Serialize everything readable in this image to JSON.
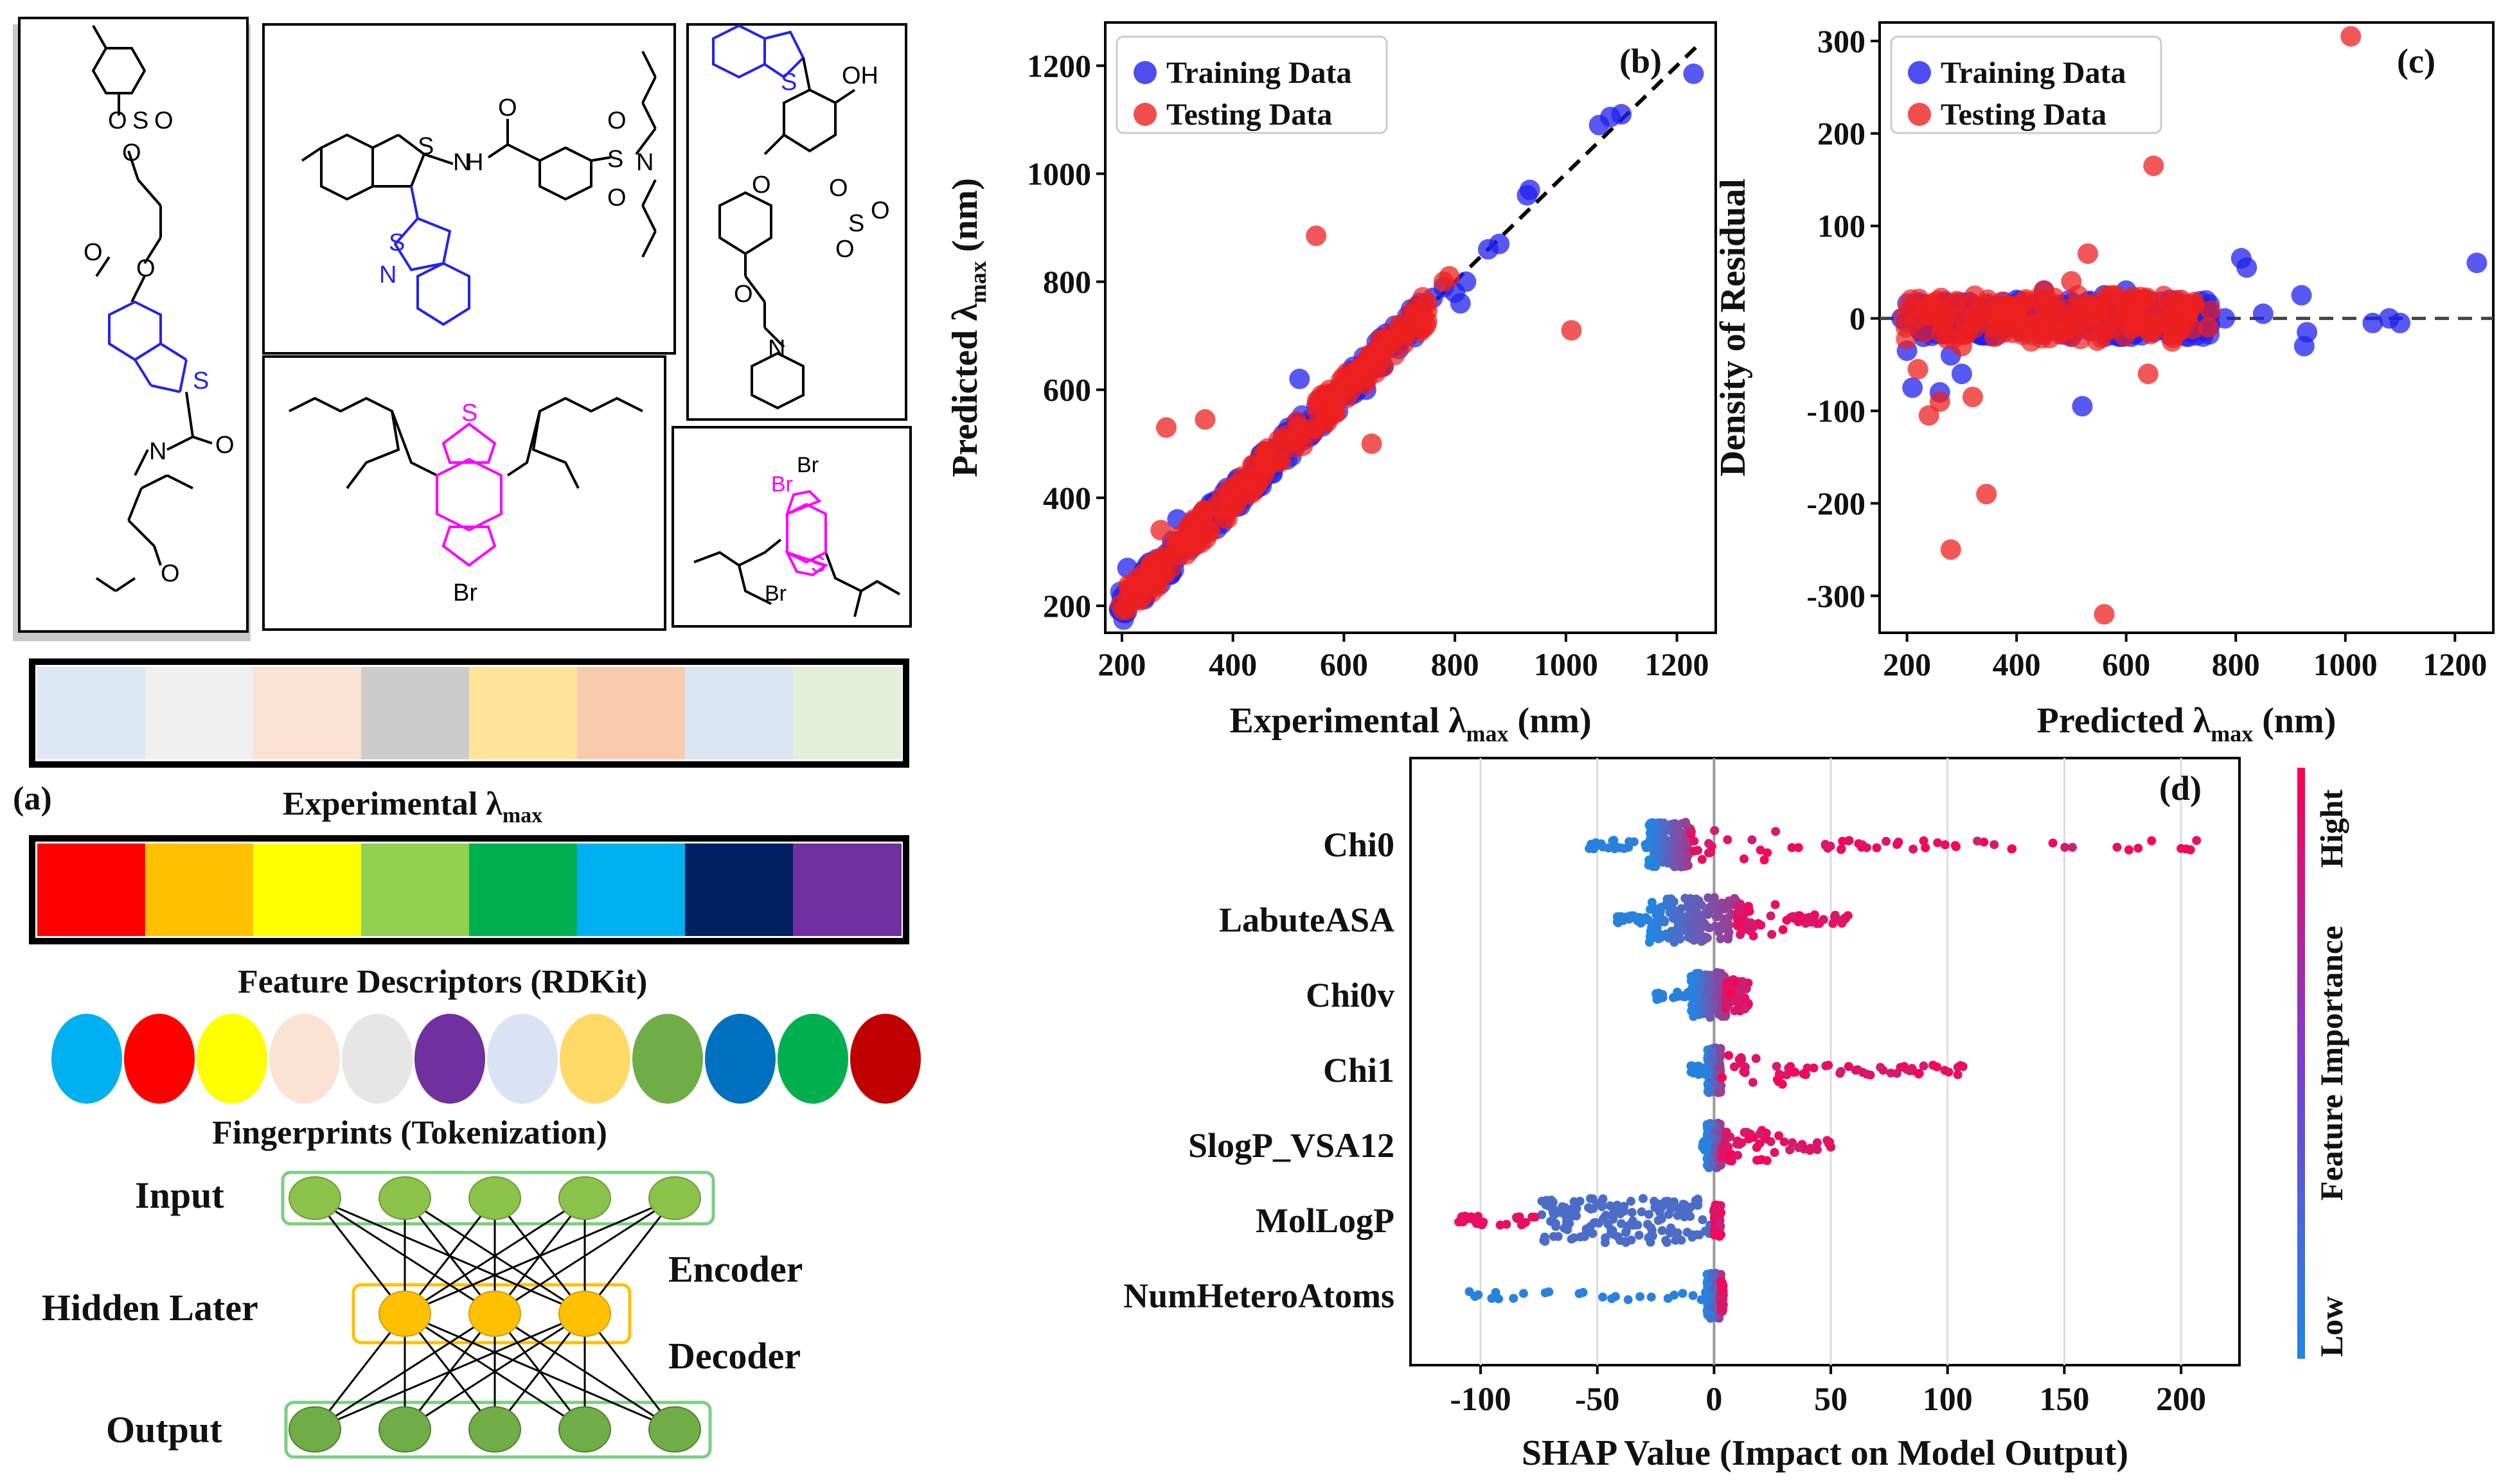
{
  "panel_a": {
    "label": "(a)",
    "experimental_label": "Experimental λ",
    "experimental_sub": "max",
    "experimental_colors": [
      "#dce9f5",
      "#f0f0f0",
      "#fbe3d3",
      "#cccccc",
      "#ffe59a",
      "#f8cbad",
      "#dae5f3",
      "#e2efd9"
    ],
    "spectrum_colors": [
      "#ff0000",
      "#ffc000",
      "#ffff00",
      "#92d050",
      "#00b050",
      "#00b0f0",
      "#002060",
      "#7030a0"
    ],
    "descriptor_label": "Feature Descriptors (RDKit)",
    "fingerprint_colors": [
      "#00b0f0",
      "#ff0000",
      "#ffff00",
      "#fbe3d3",
      "#e7e6e6",
      "#7030a0",
      "#dae3f3",
      "#ffd966",
      "#70ad47",
      "#0070c0",
      "#00b050",
      "#c00000"
    ],
    "fingerprint_label": "Fingerprints (Tokenization)",
    "network": {
      "input_label": "Input",
      "hidden_label": "Hidden Later",
      "output_label": "Output",
      "encoder_label": "Encoder",
      "decoder_label": "Decoder"
    },
    "molecules": {
      "atoms": [
        "O",
        "S",
        "O",
        "O",
        "O",
        "O",
        "S",
        "N",
        "O",
        "O",
        "S",
        "N",
        "H",
        "O",
        "S",
        "O",
        "O",
        "N",
        "S",
        "N",
        "S",
        "OH",
        "O",
        "O",
        "S",
        "O",
        "O",
        "O",
        "N",
        "S",
        "S",
        "Br",
        "Br",
        "S",
        "S",
        "Br"
      ]
    }
  },
  "chart_data": [
    {
      "panel": "(b)",
      "type": "scatter",
      "xlabel": "Experimental λ",
      "xlabel_sub": "max",
      "xlabel_unit": " (nm)",
      "ylabel": "Predicted λ",
      "ylabel_sub": "max",
      "ylabel_unit": " (nm)",
      "xlim": [
        170,
        1270
      ],
      "ylim": [
        150,
        1280
      ],
      "xticks": [
        200,
        400,
        600,
        800,
        1000,
        1200
      ],
      "yticks": [
        200,
        400,
        600,
        800,
        1000,
        1200
      ],
      "legend": [
        "Training Data",
        "Testing Data"
      ],
      "legend_position": "top-left",
      "series": [
        {
          "name": "Training Data",
          "color": "#2020ee",
          "points": [
            [
              200,
              195
            ],
            [
              210,
              205
            ],
            [
              225,
              220
            ],
            [
              240,
              235
            ],
            [
              260,
              262
            ],
            [
              280,
              290
            ],
            [
              300,
              300
            ],
            [
              320,
              330
            ],
            [
              340,
              335
            ],
            [
              360,
              365
            ],
            [
              380,
              380
            ],
            [
              400,
              405
            ],
            [
              420,
              415
            ],
            [
              440,
              445
            ],
            [
              460,
              470
            ],
            [
              480,
              485
            ],
            [
              500,
              495
            ],
            [
              520,
              530
            ],
            [
              540,
              545
            ],
            [
              560,
              555
            ],
            [
              580,
              590
            ],
            [
              600,
              600
            ],
            [
              620,
              615
            ],
            [
              640,
              650
            ],
            [
              660,
              665
            ],
            [
              680,
              690
            ],
            [
              700,
              705
            ],
            [
              720,
              730
            ],
            [
              740,
              745
            ],
            [
              760,
              770
            ],
            [
              780,
              790
            ],
            [
              800,
              780
            ],
            [
              810,
              760
            ],
            [
              820,
              800
            ],
            [
              860,
              860
            ],
            [
              880,
              870
            ],
            [
              930,
              960
            ],
            [
              935,
              970
            ],
            [
              1060,
              1090
            ],
            [
              1080,
              1105
            ],
            [
              1100,
              1110
            ],
            [
              1230,
              1185
            ],
            [
              210,
              270
            ],
            [
              250,
              280
            ],
            [
              300,
              360
            ],
            [
              450,
              480
            ],
            [
              500,
              510
            ],
            [
              520,
              620
            ],
            [
              560,
              540
            ],
            [
              640,
              600
            ]
          ]
        },
        {
          "name": "Testing Data",
          "color": "#ee2020",
          "points": [
            [
              215,
              230
            ],
            [
              230,
              240
            ],
            [
              270,
              340
            ],
            [
              280,
              530
            ],
            [
              300,
              310
            ],
            [
              330,
              360
            ],
            [
              350,
              545
            ],
            [
              370,
              385
            ],
            [
              400,
              420
            ],
            [
              430,
              440
            ],
            [
              460,
              460
            ],
            [
              490,
              510
            ],
            [
              520,
              520
            ],
            [
              550,
              885
            ],
            [
              560,
              590
            ],
            [
              590,
              585
            ],
            [
              610,
              620
            ],
            [
              630,
              640
            ],
            [
              650,
              500
            ],
            [
              660,
              670
            ],
            [
              680,
              690
            ],
            [
              700,
              720
            ],
            [
              720,
              740
            ],
            [
              750,
              760
            ],
            [
              780,
              800
            ],
            [
              790,
              810
            ],
            [
              1010,
              710
            ],
            [
              240,
              260
            ],
            [
              320,
              345
            ],
            [
              380,
              400
            ]
          ]
        }
      ],
      "reference_line": [
        [
          200,
          200
        ],
        [
          1240,
          1240
        ]
      ]
    },
    {
      "panel": "(c)",
      "type": "scatter",
      "xlabel": "Predicted λ",
      "xlabel_sub": "max",
      "xlabel_unit": " (nm)",
      "ylabel": "Density of Residual",
      "xlim": [
        150,
        1270
      ],
      "ylim": [
        -340,
        320
      ],
      "xticks": [
        200,
        400,
        600,
        800,
        1000,
        1200
      ],
      "yticks": [
        300,
        200,
        100,
        0,
        -100,
        -200,
        -300
      ],
      "legend": [
        "Training Data",
        "Testing Data"
      ],
      "legend_position": "top-left",
      "series": [
        {
          "name": "Training Data",
          "color": "#2020ee",
          "points": [
            [
              190,
              0
            ],
            [
              200,
              -35
            ],
            [
              210,
              -75
            ],
            [
              230,
              -20
            ],
            [
              250,
              -10
            ],
            [
              260,
              -80
            ],
            [
              280,
              -40
            ],
            [
              300,
              -60
            ],
            [
              320,
              10
            ],
            [
              350,
              5
            ],
            [
              380,
              -5
            ],
            [
              400,
              20
            ],
            [
              420,
              -10
            ],
            [
              450,
              30
            ],
            [
              480,
              15
            ],
            [
              500,
              -20
            ],
            [
              520,
              -95
            ],
            [
              540,
              10
            ],
            [
              560,
              25
            ],
            [
              580,
              -10
            ],
            [
              600,
              30
            ],
            [
              620,
              5
            ],
            [
              650,
              -15
            ],
            [
              680,
              20
            ],
            [
              700,
              10
            ],
            [
              740,
              -5
            ],
            [
              780,
              0
            ],
            [
              810,
              65
            ],
            [
              820,
              55
            ],
            [
              850,
              5
            ],
            [
              920,
              25
            ],
            [
              925,
              -30
            ],
            [
              930,
              -15
            ],
            [
              1050,
              -5
            ],
            [
              1080,
              0
            ],
            [
              1100,
              -5
            ],
            [
              1240,
              60
            ]
          ]
        },
        {
          "name": "Testing Data",
          "color": "#ee2020",
          "points": [
            [
              220,
              -55
            ],
            [
              240,
              -105
            ],
            [
              260,
              -90
            ],
            [
              280,
              -250
            ],
            [
              300,
              -30
            ],
            [
              320,
              -85
            ],
            [
              345,
              -190
            ],
            [
              360,
              -20
            ],
            [
              400,
              10
            ],
            [
              450,
              30
            ],
            [
              500,
              40
            ],
            [
              530,
              70
            ],
            [
              560,
              -320
            ],
            [
              580,
              25
            ],
            [
              600,
              10
            ],
            [
              640,
              -60
            ],
            [
              650,
              165
            ],
            [
              700,
              20
            ],
            [
              750,
              -10
            ],
            [
              1010,
              305
            ]
          ]
        }
      ],
      "reference_line_y": 0
    },
    {
      "panel": "(d)",
      "type": "scatter",
      "subtype": "shap-beeswarm",
      "xlabel": "SHAP Value (Impact on Model Output)",
      "xlim": [
        -130,
        225
      ],
      "xticks": [
        -100,
        -50,
        0,
        50,
        100,
        150,
        200
      ],
      "features": [
        "Chi0",
        "LabuteASA",
        "Chi0v",
        "Chi1",
        "SlogP_VSA12",
        "MolLogP",
        "NumHeteroAtoms"
      ],
      "colorbar": {
        "high": "Hight",
        "low": "Low",
        "title": "Feature Importance",
        "low_color": "#1e88e5",
        "high_color": "#ff0052"
      },
      "ranges": [
        {
          "feature": "Chi0",
          "neg_min": -55,
          "neg_dense": [
            -28,
            -10
          ],
          "pos_max": 207
        },
        {
          "feature": "LabuteASA",
          "neg_min": -43,
          "neg_dense": [
            -28,
            10
          ],
          "pos_max": 58
        },
        {
          "feature": "Chi0v",
          "neg_min": -25,
          "neg_dense": [
            -10,
            5
          ],
          "pos_max": 15
        },
        {
          "feature": "Chi1",
          "neg_min": -10,
          "neg_dense": [
            -3,
            3
          ],
          "pos_max": 110
        },
        {
          "feature": "SlogP_VSA12",
          "neg_min": -5,
          "neg_dense": [
            -3,
            3
          ],
          "pos_max": 52
        },
        {
          "feature": "MolLogP",
          "neg_min": -110,
          "neg_dense": [
            -75,
            0
          ],
          "pos_max": 3
        },
        {
          "feature": "NumHeteroAtoms",
          "neg_min": -105,
          "neg_dense": [
            -3,
            3
          ],
          "pos_max": 4
        }
      ]
    }
  ]
}
